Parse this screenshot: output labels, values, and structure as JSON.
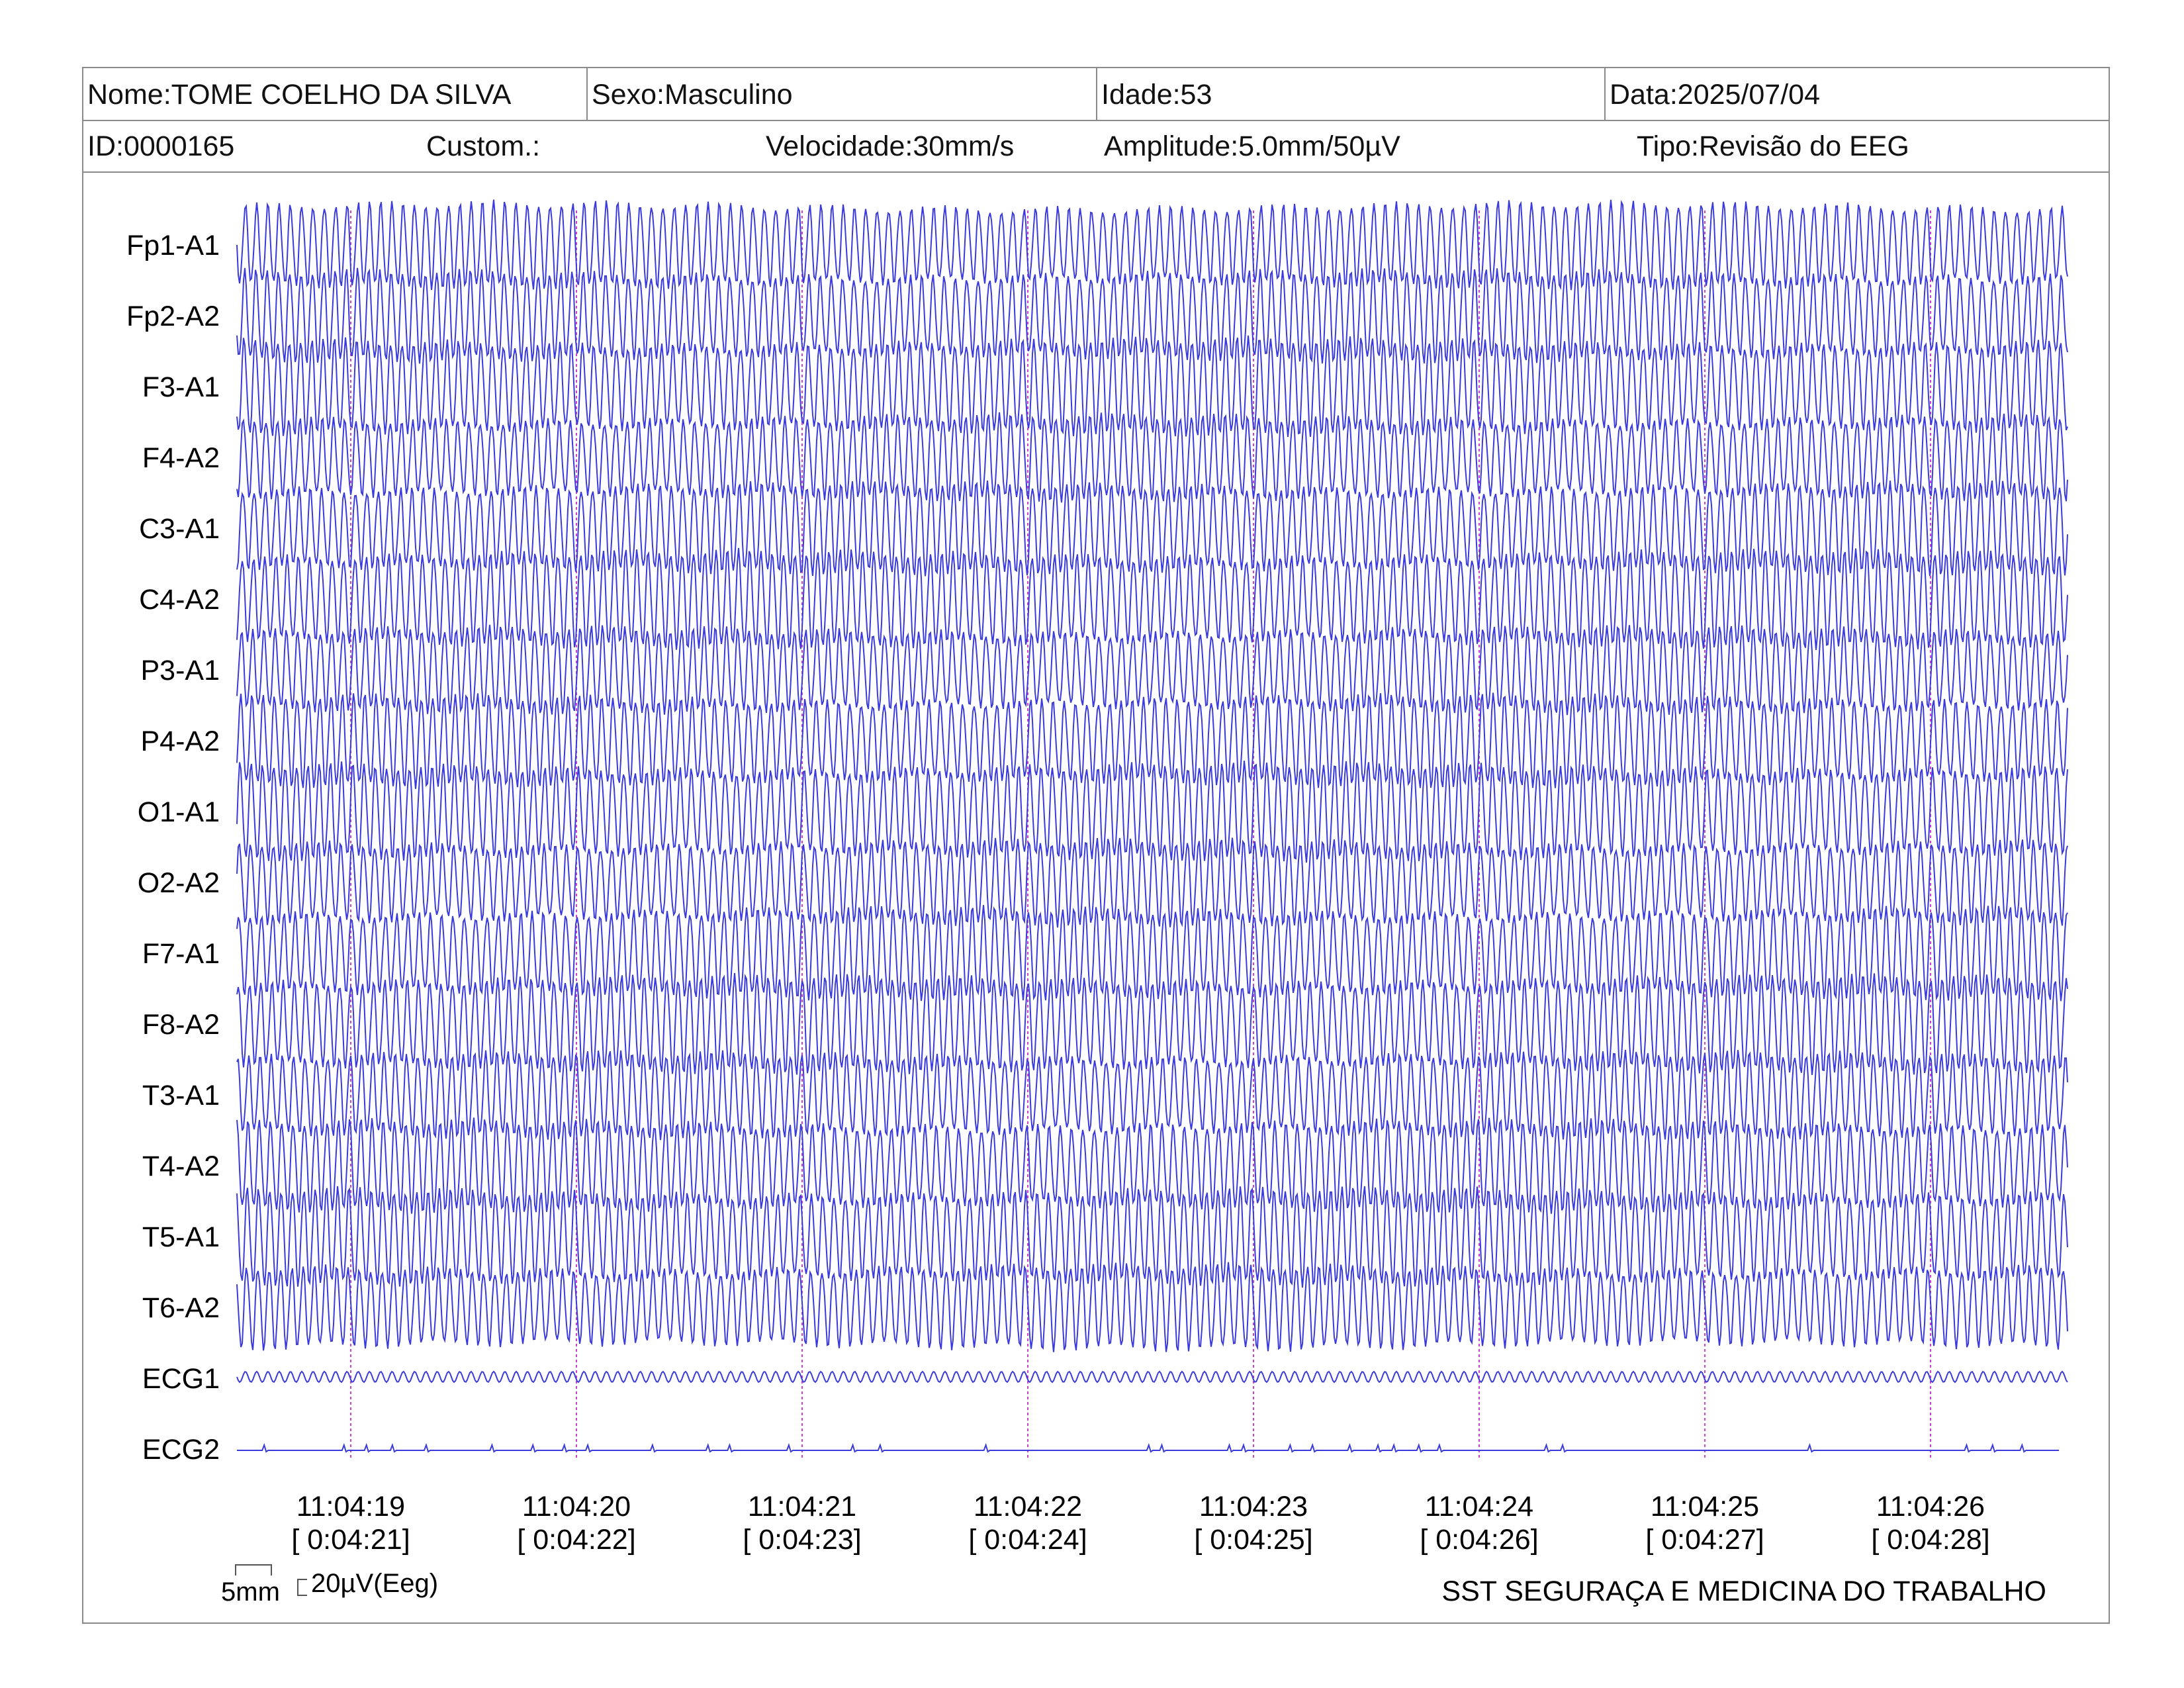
{
  "header": {
    "nome": "Nome:TOME COELHO DA SILVA",
    "sexo": "Sexo:Masculino",
    "idade": "Idade:53",
    "data": "Data:2025/07/04",
    "id": "ID:0000165",
    "custom": "Custom.:",
    "velocidade": "Velocidade:30mm/s",
    "amplitude": "Amplitude:5.0mm/50µV",
    "tipo": "Tipo:Revisão do EEG"
  },
  "footer": {
    "scale_time": "5mm",
    "scale_amp": "20µV(Eeg)",
    "company": "SST SEGURAÇA E MEDICINA DO TRABALHO"
  },
  "colors": {
    "trace": "#3b3bdc",
    "marker": "#d040d0",
    "border": "#8a8a8a"
  },
  "chart_data": {
    "type": "line",
    "channels": [
      "Fp1-A1",
      "Fp2-A2",
      "F3-A1",
      "F4-A2",
      "C3-A1",
      "C4-A2",
      "P3-A1",
      "P4-A2",
      "O1-A1",
      "O2-A2",
      "F7-A1",
      "F8-A2",
      "T3-A1",
      "T4-A2",
      "T5-A1",
      "T6-A2",
      "ECG1",
      "ECG2"
    ],
    "time_markers": [
      {
        "clock": "11:04:19",
        "elapsed": "[ 0:04:21]"
      },
      {
        "clock": "11:04:20",
        "elapsed": "[ 0:04:22]"
      },
      {
        "clock": "11:04:21",
        "elapsed": "[ 0:04:23]"
      },
      {
        "clock": "11:04:22",
        "elapsed": "[ 0:04:24]"
      },
      {
        "clock": "11:04:23",
        "elapsed": "[ 0:04:25]"
      },
      {
        "clock": "11:04:24",
        "elapsed": "[ 0:04:26]"
      },
      {
        "clock": "11:04:25",
        "elapsed": "[ 0:04:27]"
      },
      {
        "clock": "11:04:26",
        "elapsed": "[ 0:04:28]"
      }
    ],
    "eeg_oscillation_hz": 20,
    "ecg1_oscillation_hz": 20,
    "ecg2_spikes": true
  }
}
